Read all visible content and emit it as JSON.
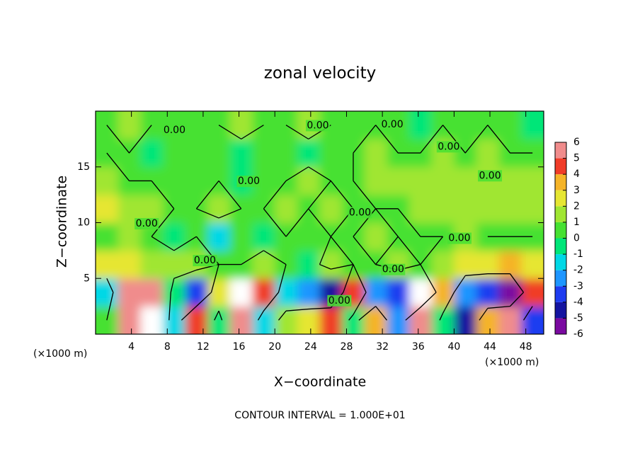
{
  "chart_data": {
    "type": "contour",
    "title": "zonal velocity",
    "x_label": "X−coordinate",
    "y_label": "Z−coordinate",
    "x_unit_label": "(×1000 m)",
    "y_unit_label": "(×1000 m)",
    "footnote": "CONTOUR INTERVAL = 1.000E+01",
    "xlim": [
      0,
      50
    ],
    "ylim": [
      0,
      20
    ],
    "xticks": [
      4,
      8,
      12,
      16,
      20,
      24,
      28,
      32,
      36,
      40,
      44,
      48
    ],
    "yticks": [
      5,
      10,
      15
    ],
    "x": [
      1.25,
      3.75,
      6.25,
      8.75,
      11.25,
      13.75,
      16.25,
      18.75,
      21.25,
      23.75,
      26.25,
      28.75,
      31.25,
      33.75,
      36.25,
      38.75,
      41.25,
      43.75,
      46.25,
      48.75
    ],
    "y": [
      1.25,
      3.75,
      6.25,
      8.75,
      11.25,
      13.75,
      16.25,
      18.75
    ],
    "z": [
      [
        0,
        5,
        7,
        -2,
        4,
        -1,
        6,
        -2,
        1,
        2,
        4,
        -1,
        3,
        -3,
        6,
        -1,
        -5,
        3,
        6,
        -4
      ],
      [
        -2,
        5,
        6,
        -1,
        -4,
        2,
        7,
        4,
        -2,
        -3,
        -5,
        4,
        -3,
        -4,
        -7,
        3,
        -3,
        -4,
        -6,
        4
      ],
      [
        2,
        2,
        1,
        1,
        1,
        0,
        0,
        1,
        0,
        -1,
        1,
        0,
        0,
        1,
        0,
        1,
        2,
        2,
        3,
        2
      ],
      [
        0,
        1,
        0,
        -1,
        0,
        -2,
        0,
        -1,
        0,
        0,
        0,
        0,
        1,
        0,
        0,
        0,
        1,
        0,
        0,
        0
      ],
      [
        2,
        1,
        1,
        0,
        0,
        1,
        0,
        0,
        1,
        0,
        1,
        0,
        0,
        0,
        1,
        1,
        1,
        1,
        1,
        1
      ],
      [
        1,
        0,
        0,
        0,
        0,
        0,
        -1,
        0,
        0,
        1,
        0,
        0,
        1,
        1,
        1,
        1,
        1,
        1,
        1,
        1
      ],
      [
        0,
        0,
        -1,
        0,
        0,
        0,
        -1,
        0,
        0,
        -1,
        0,
        0,
        1,
        0,
        0,
        1,
        0,
        1,
        0,
        0
      ],
      [
        0,
        1,
        0,
        0,
        0,
        0,
        1,
        0,
        0,
        1,
        0,
        0,
        0,
        0,
        -1,
        0,
        0,
        0,
        0,
        -1
      ]
    ],
    "contour_levels": [
      0
    ],
    "contour_labels": [
      {
        "label": "0.00",
        "x": 8.8,
        "y": 18.3
      },
      {
        "label": "0.00",
        "x": 24.8,
        "y": 18.7
      },
      {
        "label": "0.00",
        "x": 33.1,
        "y": 18.8
      },
      {
        "label": "0.00",
        "x": 39.4,
        "y": 16.8
      },
      {
        "label": "0.00",
        "x": 44.0,
        "y": 14.2
      },
      {
        "label": "0.00",
        "x": 17.1,
        "y": 13.7
      },
      {
        "label": "0.00",
        "x": 29.5,
        "y": 10.9
      },
      {
        "label": "0.00",
        "x": 5.7,
        "y": 9.9
      },
      {
        "label": "0.00",
        "x": 40.6,
        "y": 8.6
      },
      {
        "label": "0.00",
        "x": 12.2,
        "y": 6.6
      },
      {
        "label": "0.00",
        "x": 33.2,
        "y": 5.8
      },
      {
        "label": "0.00",
        "x": 27.2,
        "y": 3.0
      }
    ],
    "colorbar_ticks": [
      -6,
      -5,
      -4,
      -3,
      -2,
      -1,
      0,
      1,
      2,
      3,
      4,
      5,
      6
    ],
    "colorbar_colors": [
      "#7a0aa0",
      "#1414a0",
      "#1e3cf0",
      "#1e96ff",
      "#00d8e6",
      "#00e678",
      "#46e132",
      "#a0e632",
      "#e6e632",
      "#f5b428",
      "#f03c28",
      "#f08c8c"
    ],
    "out_of_range_color": "#ffffff",
    "contour_color": "#000000"
  }
}
